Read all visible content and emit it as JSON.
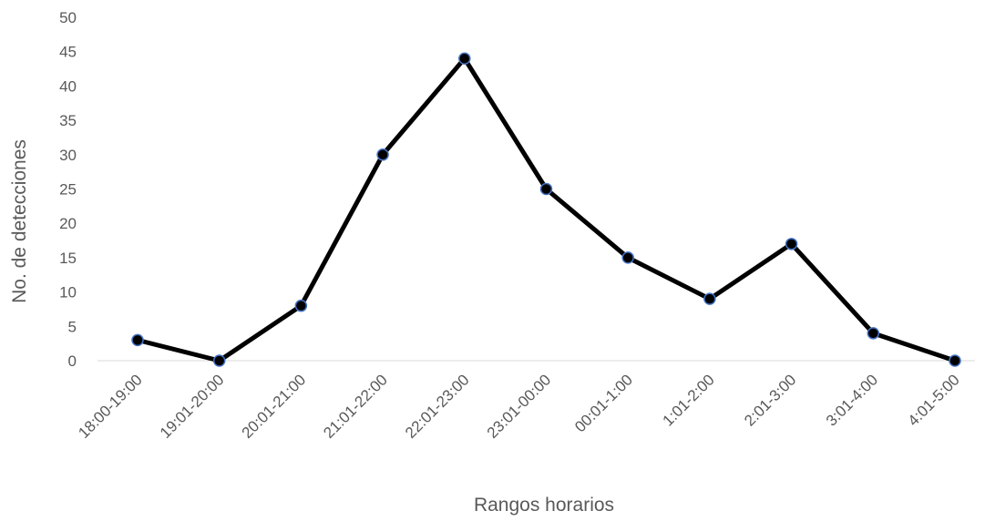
{
  "chart_data": {
    "type": "line",
    "title": "",
    "xlabel": "Rangos horarios",
    "ylabel": "No.  de detecciones",
    "ylim": [
      0,
      50
    ],
    "y_ticks": [
      "0",
      "5",
      "10",
      "15",
      "20",
      "25",
      "30",
      "35",
      "40",
      "45",
      "50"
    ],
    "categories": [
      "18:00-19:00",
      "19:01-20:00",
      "20:01-21:00",
      "21:01-22:00",
      "22:01-23:00",
      "23:01-00:00",
      "00:01-1:00",
      "1:01-2:00",
      "2:01-3:00",
      "3:01-4:00",
      "4:01-5:00"
    ],
    "series": [
      {
        "values": [
          3,
          0,
          8,
          30,
          44,
          25,
          15,
          9,
          17,
          4,
          0
        ]
      }
    ],
    "grid": false,
    "legend": "none",
    "line_color": "#000000",
    "marker_outline_color": "#4472C4"
  }
}
